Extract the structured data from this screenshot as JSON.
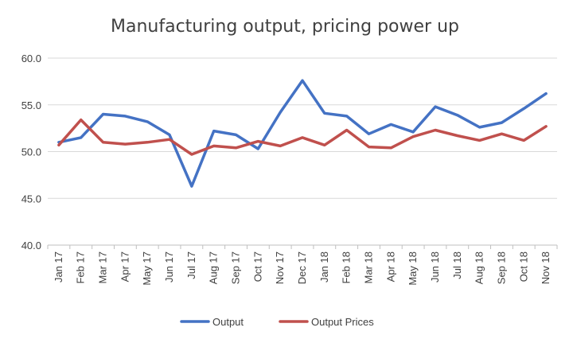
{
  "chart_data": {
    "type": "line",
    "title": "Manufacturing output, pricing power up",
    "categories": [
      "Jan 17",
      "Feb 17",
      "Mar 17",
      "Apr 17",
      "May 17",
      "Jun 17",
      "Jul 17",
      "Aug 17",
      "Sep 17",
      "Oct 17",
      "Nov 17",
      "Dec 17",
      "Jan 18",
      "Feb 18",
      "Mar 18",
      "Apr 18",
      "May 18",
      "Jun 18",
      "Jul 18",
      "Aug 18",
      "Sep 18",
      "Oct 18",
      "Nov 18"
    ],
    "ylim": [
      40,
      60
    ],
    "yticks": [
      "40.0",
      "45.0",
      "50.0",
      "55.0",
      "60.0"
    ],
    "ytick_values": [
      40,
      45,
      50,
      55,
      60
    ],
    "grid": true,
    "legend_position": "bottom",
    "series": [
      {
        "name": "Output",
        "color": "#4472C4",
        "values": [
          51.0,
          51.5,
          54.0,
          53.8,
          53.2,
          51.8,
          46.3,
          52.2,
          51.8,
          50.3,
          54.2,
          57.6,
          54.1,
          53.8,
          51.9,
          52.9,
          52.1,
          54.8,
          53.9,
          52.6,
          53.1,
          54.6,
          56.2
        ]
      },
      {
        "name": "Output Prices",
        "color": "#C0504D",
        "values": [
          50.7,
          53.4,
          51.0,
          50.8,
          51.0,
          51.3,
          49.7,
          50.6,
          50.4,
          51.1,
          50.6,
          51.5,
          50.7,
          52.3,
          50.5,
          50.4,
          51.6,
          52.3,
          51.7,
          51.2,
          51.9,
          51.2,
          52.7
        ]
      }
    ]
  }
}
